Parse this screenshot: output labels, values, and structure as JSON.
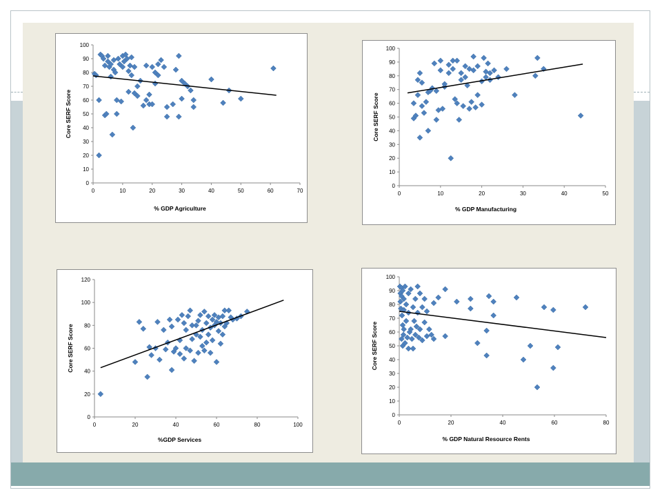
{
  "colors": {
    "marker": "#4f81bd",
    "trendline": "#000000",
    "panel": "#eeece1",
    "band": "#87aaab",
    "side": "#c7d3d7"
  },
  "chart_data": [
    {
      "type": "scatter",
      "xlabel": "% GDP Agriculture",
      "ylabel": "Core SERF Score",
      "xlim": [
        0,
        70
      ],
      "ylim": [
        0,
        100
      ],
      "xticks": [
        "0",
        "10",
        "20",
        "30",
        "40",
        "50",
        "60",
        "70"
      ],
      "yticks": [
        "0",
        "10",
        "20",
        "30",
        "40",
        "50",
        "60",
        "70",
        "80",
        "90",
        "100"
      ],
      "points": [
        [
          0.5,
          79
        ],
        [
          1,
          78
        ],
        [
          2,
          60
        ],
        [
          2,
          20
        ],
        [
          2.5,
          93
        ],
        [
          3,
          92
        ],
        [
          3.5,
          90
        ],
        [
          4,
          85
        ],
        [
          4,
          49
        ],
        [
          4.5,
          50
        ],
        [
          5,
          88
        ],
        [
          5,
          92
        ],
        [
          5.5,
          84
        ],
        [
          6,
          86
        ],
        [
          6,
          77
        ],
        [
          6.5,
          35
        ],
        [
          7,
          89
        ],
        [
          7,
          82
        ],
        [
          7.5,
          80
        ],
        [
          8,
          50
        ],
        [
          8,
          60
        ],
        [
          8.5,
          90
        ],
        [
          9,
          86
        ],
        [
          9.5,
          59
        ],
        [
          10,
          84
        ],
        [
          10,
          92
        ],
        [
          10.5,
          88
        ],
        [
          11,
          93
        ],
        [
          11.5,
          90
        ],
        [
          12,
          81
        ],
        [
          12,
          66
        ],
        [
          12.5,
          85
        ],
        [
          13,
          78
        ],
        [
          13,
          91
        ],
        [
          13.5,
          40
        ],
        [
          14,
          84
        ],
        [
          14,
          65
        ],
        [
          15,
          70
        ],
        [
          15,
          63
        ],
        [
          16,
          74
        ],
        [
          17,
          56
        ],
        [
          18,
          85
        ],
        [
          18,
          60
        ],
        [
          19,
          64
        ],
        [
          19,
          57
        ],
        [
          20,
          84
        ],
        [
          20,
          57
        ],
        [
          21,
          72
        ],
        [
          21,
          80
        ],
        [
          22,
          78
        ],
        [
          22,
          86
        ],
        [
          23,
          89
        ],
        [
          24,
          84
        ],
        [
          25,
          55
        ],
        [
          25,
          48
        ],
        [
          27,
          57
        ],
        [
          28,
          82
        ],
        [
          29,
          92
        ],
        [
          29,
          48
        ],
        [
          30,
          74
        ],
        [
          30,
          61
        ],
        [
          31,
          72
        ],
        [
          32,
          70
        ],
        [
          33,
          67
        ],
        [
          34,
          60
        ],
        [
          34,
          55
        ],
        [
          40,
          75
        ],
        [
          44,
          58
        ],
        [
          46,
          67
        ],
        [
          50,
          61
        ],
        [
          61,
          83
        ]
      ],
      "trendline": [
        [
          0,
          77.5
        ],
        [
          62,
          63.5
        ]
      ]
    },
    {
      "type": "scatter",
      "xlabel": "% GDP Manufacturing",
      "ylabel": "Core SERF Score",
      "xlim": [
        0,
        50
      ],
      "ylim": [
        0,
        100
      ],
      "xticks": [
        "0",
        "10",
        "20",
        "30",
        "40",
        "50"
      ],
      "yticks": [
        "0",
        "10",
        "20",
        "30",
        "40",
        "50",
        "60",
        "70",
        "80",
        "90",
        "100"
      ],
      "points": [
        [
          3.5,
          49
        ],
        [
          3.5,
          60
        ],
        [
          4,
          51
        ],
        [
          4.5,
          66
        ],
        [
          4.5,
          77
        ],
        [
          5,
          82
        ],
        [
          5,
          35
        ],
        [
          5.5,
          58
        ],
        [
          5.5,
          75
        ],
        [
          6,
          53
        ],
        [
          6.5,
          61
        ],
        [
          7,
          68
        ],
        [
          7,
          40
        ],
        [
          7.5,
          69
        ],
        [
          8,
          71
        ],
        [
          8.5,
          89
        ],
        [
          9,
          69
        ],
        [
          9,
          48
        ],
        [
          9.5,
          55
        ],
        [
          10,
          91
        ],
        [
          10,
          84
        ],
        [
          10.5,
          56
        ],
        [
          11,
          72
        ],
        [
          11,
          74
        ],
        [
          12,
          82
        ],
        [
          12,
          88
        ],
        [
          12.5,
          20
        ],
        [
          13,
          91
        ],
        [
          13,
          85
        ],
        [
          13.5,
          63
        ],
        [
          14,
          91
        ],
        [
          14,
          60
        ],
        [
          14.5,
          48
        ],
        [
          15,
          77
        ],
        [
          15,
          82
        ],
        [
          15.5,
          58
        ],
        [
          16,
          79
        ],
        [
          16,
          87
        ],
        [
          16.5,
          73
        ],
        [
          17,
          56
        ],
        [
          17,
          85
        ],
        [
          17.5,
          61
        ],
        [
          18,
          94
        ],
        [
          18,
          84
        ],
        [
          18.5,
          57
        ],
        [
          19,
          87
        ],
        [
          19,
          66
        ],
        [
          20,
          59
        ],
        [
          20,
          76
        ],
        [
          20.5,
          93
        ],
        [
          21,
          83
        ],
        [
          21,
          79
        ],
        [
          21.5,
          89
        ],
        [
          22,
          82
        ],
        [
          22,
          77
        ],
        [
          23,
          84
        ],
        [
          24,
          79
        ],
        [
          26,
          85
        ],
        [
          28,
          66
        ],
        [
          33,
          80
        ],
        [
          33.5,
          93
        ],
        [
          35,
          85
        ],
        [
          44,
          51
        ]
      ],
      "trendline": [
        [
          2,
          67.5
        ],
        [
          44.5,
          88.5
        ]
      ]
    },
    {
      "type": "scatter",
      "xlabel": "%GDP Services",
      "ylabel": "Core SERF Score",
      "xlim": [
        0,
        100
      ],
      "ylim": [
        0,
        120
      ],
      "xticks": [
        "0",
        "20",
        "40",
        "60",
        "80",
        "100"
      ],
      "yticks": [
        "0",
        "20",
        "40",
        "60",
        "80",
        "100",
        "120"
      ],
      "points": [
        [
          3,
          20
        ],
        [
          20,
          48
        ],
        [
          22,
          83
        ],
        [
          24,
          77
        ],
        [
          26,
          35
        ],
        [
          27,
          61
        ],
        [
          28,
          54
        ],
        [
          30,
          60
        ],
        [
          31,
          83
        ],
        [
          32,
          50
        ],
        [
          34,
          76
        ],
        [
          35,
          59
        ],
        [
          36,
          65
        ],
        [
          37,
          85
        ],
        [
          38,
          41
        ],
        [
          38,
          79
        ],
        [
          39,
          57
        ],
        [
          40,
          60
        ],
        [
          41,
          85
        ],
        [
          42,
          67
        ],
        [
          42,
          55
        ],
        [
          43,
          89
        ],
        [
          44,
          51
        ],
        [
          44,
          82
        ],
        [
          45,
          60
        ],
        [
          45,
          76
        ],
        [
          46,
          88
        ],
        [
          47,
          58
        ],
        [
          47,
          93
        ],
        [
          48,
          68
        ],
        [
          48,
          80
        ],
        [
          49,
          49
        ],
        [
          50,
          72
        ],
        [
          50,
          80
        ],
        [
          51,
          84
        ],
        [
          51,
          56
        ],
        [
          52,
          89
        ],
        [
          52,
          70
        ],
        [
          53,
          76
        ],
        [
          53,
          62
        ],
        [
          54,
          92
        ],
        [
          54,
          58
        ],
        [
          55,
          82
        ],
        [
          55,
          65
        ],
        [
          56,
          88
        ],
        [
          56,
          72
        ],
        [
          57,
          78
        ],
        [
          57,
          56
        ],
        [
          58,
          85
        ],
        [
          58,
          67
        ],
        [
          59,
          89
        ],
        [
          59,
          80
        ],
        [
          60,
          83
        ],
        [
          60,
          48
        ],
        [
          61,
          87
        ],
        [
          61,
          75
        ],
        [
          62,
          82
        ],
        [
          62,
          64
        ],
        [
          63,
          88
        ],
        [
          63,
          72
        ],
        [
          64,
          93
        ],
        [
          64,
          79
        ],
        [
          65,
          82
        ],
        [
          66,
          93
        ],
        [
          67,
          87
        ],
        [
          68,
          85
        ],
        [
          70,
          86
        ],
        [
          72,
          88
        ],
        [
          75,
          92
        ]
      ],
      "trendline": [
        [
          3,
          43
        ],
        [
          93,
          102
        ]
      ]
    },
    {
      "type": "scatter",
      "xlabel": "% GDP Natural Resource Rents",
      "ylabel": "Core SERF Score",
      "xlim": [
        0,
        90
      ],
      "ylim": [
        0,
        100
      ],
      "xticks": [
        "0",
        "20",
        "40",
        "60",
        "80"
      ],
      "yticks": [
        "0",
        "10",
        "20",
        "30",
        "40",
        "50",
        "60",
        "70",
        "80",
        "90",
        "100"
      ],
      "points": [
        [
          0.3,
          93
        ],
        [
          0.5,
          88
        ],
        [
          0.5,
          82
        ],
        [
          0.7,
          77
        ],
        [
          1,
          92
        ],
        [
          1,
          86
        ],
        [
          1,
          55
        ],
        [
          1.2,
          72
        ],
        [
          1.5,
          90
        ],
        [
          1.5,
          65
        ],
        [
          1.5,
          50
        ],
        [
          1.8,
          58
        ],
        [
          2,
          84
        ],
        [
          2,
          76
        ],
        [
          2,
          62
        ],
        [
          2.5,
          93
        ],
        [
          2.5,
          52
        ],
        [
          3,
          80
        ],
        [
          3,
          68
        ],
        [
          3.5,
          56
        ],
        [
          4,
          88
        ],
        [
          4,
          74
        ],
        [
          4,
          48
        ],
        [
          4.5,
          60
        ],
        [
          5,
          91
        ],
        [
          5,
          62
        ],
        [
          5.5,
          55
        ],
        [
          6,
          78
        ],
        [
          6,
          48
        ],
        [
          6.5,
          68
        ],
        [
          7,
          84
        ],
        [
          7,
          58
        ],
        [
          7.5,
          64
        ],
        [
          8,
          93
        ],
        [
          8,
          74
        ],
        [
          8.5,
          56
        ],
        [
          9,
          88
        ],
        [
          9,
          62
        ],
        [
          10,
          78
        ],
        [
          10,
          54
        ],
        [
          11,
          67
        ],
        [
          11,
          84
        ],
        [
          12,
          75
        ],
        [
          12,
          57
        ],
        [
          13,
          62
        ],
        [
          14,
          58
        ],
        [
          15,
          81
        ],
        [
          15,
          55
        ],
        [
          17,
          85
        ],
        [
          20,
          91
        ],
        [
          20,
          57
        ],
        [
          25,
          82
        ],
        [
          31,
          84
        ],
        [
          31,
          77
        ],
        [
          34,
          52
        ],
        [
          38,
          61
        ],
        [
          38,
          43
        ],
        [
          39,
          86
        ],
        [
          41,
          82
        ],
        [
          41,
          72
        ],
        [
          51,
          85
        ],
        [
          54,
          40
        ],
        [
          57,
          50
        ],
        [
          60,
          20
        ],
        [
          63,
          78
        ],
        [
          67,
          76
        ],
        [
          67,
          34
        ],
        [
          69,
          49
        ],
        [
          81,
          78
        ]
      ],
      "trendline": [
        [
          0,
          75
        ],
        [
          90,
          56
        ]
      ]
    }
  ]
}
